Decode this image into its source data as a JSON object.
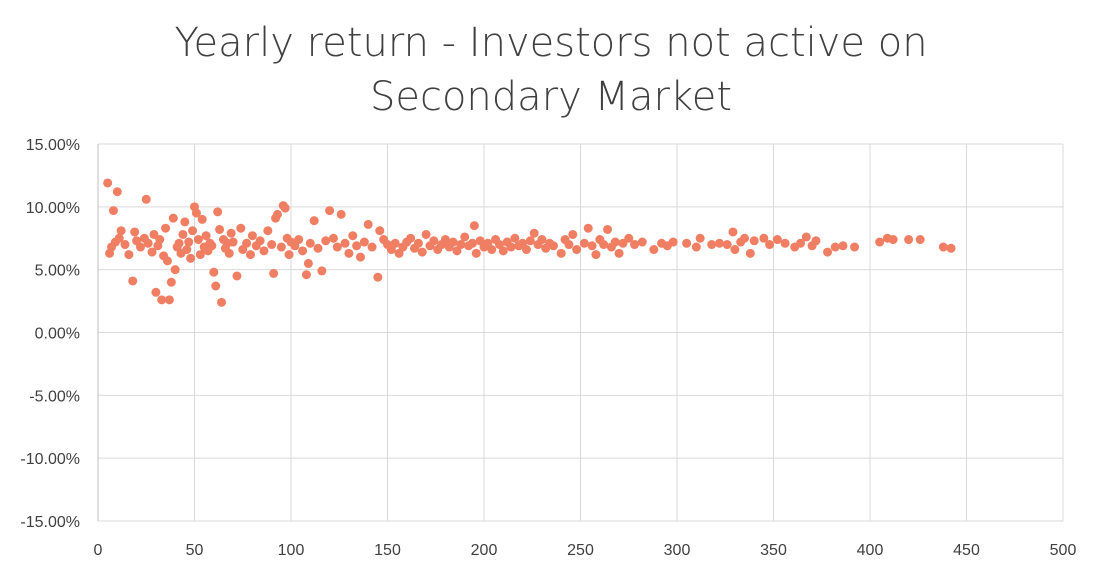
{
  "chart_data": {
    "type": "scatter",
    "title_line1": "Yearly return - Investors not active on",
    "title_line2": "Secondary Market",
    "xlabel": "",
    "ylabel": "",
    "xlim": [
      0,
      500
    ],
    "ylim": [
      -0.15,
      0.15
    ],
    "x_ticks": [
      0,
      50,
      100,
      150,
      200,
      250,
      300,
      350,
      400,
      450,
      500
    ],
    "x_tick_labels": [
      "0",
      "50",
      "100",
      "150",
      "200",
      "250",
      "300",
      "350",
      "400",
      "450",
      "500"
    ],
    "y_ticks": [
      0.15,
      0.1,
      0.05,
      0.0,
      -0.05,
      -0.1,
      -0.15
    ],
    "y_tick_labels": [
      "15.00%",
      "10.00%",
      "5.00%",
      "0.00%",
      "-5.00%",
      "-10.00%",
      "-15.00%"
    ],
    "grid": true,
    "legend": "none",
    "marker_color": "#F07E62",
    "points": [
      [
        5,
        0.119
      ],
      [
        10,
        0.112
      ],
      [
        8,
        0.097
      ],
      [
        25,
        0.106
      ],
      [
        18,
        0.041
      ],
      [
        30,
        0.032
      ],
      [
        33,
        0.026
      ],
      [
        37,
        0.026
      ],
      [
        40,
        0.05
      ],
      [
        38,
        0.04
      ],
      [
        6,
        0.063
      ],
      [
        7,
        0.068
      ],
      [
        9,
        0.072
      ],
      [
        11,
        0.075
      ],
      [
        12,
        0.081
      ],
      [
        14,
        0.07
      ],
      [
        16,
        0.062
      ],
      [
        19,
        0.08
      ],
      [
        20,
        0.073
      ],
      [
        22,
        0.068
      ],
      [
        24,
        0.075
      ],
      [
        26,
        0.071
      ],
      [
        28,
        0.064
      ],
      [
        29,
        0.078
      ],
      [
        31,
        0.069
      ],
      [
        32,
        0.074
      ],
      [
        34,
        0.061
      ],
      [
        35,
        0.083
      ],
      [
        36,
        0.057
      ],
      [
        39,
        0.091
      ],
      [
        41,
        0.068
      ],
      [
        42,
        0.071
      ],
      [
        43,
        0.063
      ],
      [
        44,
        0.078
      ],
      [
        45,
        0.088
      ],
      [
        46,
        0.066
      ],
      [
        47,
        0.072
      ],
      [
        48,
        0.059
      ],
      [
        49,
        0.081
      ],
      [
        50,
        0.1
      ],
      [
        51,
        0.095
      ],
      [
        52,
        0.074
      ],
      [
        53,
        0.062
      ],
      [
        54,
        0.09
      ],
      [
        55,
        0.068
      ],
      [
        56,
        0.077
      ],
      [
        57,
        0.065
      ],
      [
        58,
        0.071
      ],
      [
        59,
        0.069
      ],
      [
        60,
        0.048
      ],
      [
        61,
        0.037
      ],
      [
        62,
        0.096
      ],
      [
        63,
        0.082
      ],
      [
        64,
        0.024
      ],
      [
        65,
        0.074
      ],
      [
        66,
        0.067
      ],
      [
        67,
        0.071
      ],
      [
        68,
        0.063
      ],
      [
        69,
        0.079
      ],
      [
        70,
        0.072
      ],
      [
        72,
        0.045
      ],
      [
        74,
        0.083
      ],
      [
        75,
        0.066
      ],
      [
        77,
        0.071
      ],
      [
        79,
        0.062
      ],
      [
        80,
        0.077
      ],
      [
        82,
        0.069
      ],
      [
        84,
        0.073
      ],
      [
        86,
        0.065
      ],
      [
        88,
        0.081
      ],
      [
        90,
        0.07
      ],
      [
        91,
        0.047
      ],
      [
        92,
        0.091
      ],
      [
        93,
        0.094
      ],
      [
        95,
        0.068
      ],
      [
        96,
        0.101
      ],
      [
        97,
        0.099
      ],
      [
        98,
        0.075
      ],
      [
        99,
        0.062
      ],
      [
        100,
        0.072
      ],
      [
        102,
        0.069
      ],
      [
        104,
        0.074
      ],
      [
        106,
        0.065
      ],
      [
        108,
        0.046
      ],
      [
        109,
        0.055
      ],
      [
        110,
        0.071
      ],
      [
        112,
        0.089
      ],
      [
        114,
        0.067
      ],
      [
        116,
        0.049
      ],
      [
        118,
        0.073
      ],
      [
        120,
        0.097
      ],
      [
        122,
        0.075
      ],
      [
        124,
        0.068
      ],
      [
        126,
        0.094
      ],
      [
        128,
        0.071
      ],
      [
        130,
        0.063
      ],
      [
        132,
        0.077
      ],
      [
        134,
        0.069
      ],
      [
        136,
        0.06
      ],
      [
        138,
        0.072
      ],
      [
        140,
        0.086
      ],
      [
        142,
        0.068
      ],
      [
        145,
        0.044
      ],
      [
        146,
        0.081
      ],
      [
        148,
        0.074
      ],
      [
        150,
        0.07
      ],
      [
        152,
        0.066
      ],
      [
        154,
        0.071
      ],
      [
        156,
        0.063
      ],
      [
        158,
        0.068
      ],
      [
        160,
        0.072
      ],
      [
        162,
        0.075
      ],
      [
        164,
        0.067
      ],
      [
        166,
        0.071
      ],
      [
        168,
        0.064
      ],
      [
        170,
        0.078
      ],
      [
        172,
        0.069
      ],
      [
        174,
        0.073
      ],
      [
        176,
        0.066
      ],
      [
        178,
        0.07
      ],
      [
        180,
        0.074
      ],
      [
        182,
        0.068
      ],
      [
        184,
        0.072
      ],
      [
        186,
        0.065
      ],
      [
        188,
        0.07
      ],
      [
        190,
        0.076
      ],
      [
        192,
        0.069
      ],
      [
        194,
        0.071
      ],
      [
        195,
        0.085
      ],
      [
        196,
        0.063
      ],
      [
        198,
        0.073
      ],
      [
        200,
        0.068
      ],
      [
        202,
        0.071
      ],
      [
        204,
        0.066
      ],
      [
        206,
        0.074
      ],
      [
        208,
        0.07
      ],
      [
        210,
        0.065
      ],
      [
        212,
        0.072
      ],
      [
        214,
        0.068
      ],
      [
        216,
        0.075
      ],
      [
        218,
        0.069
      ],
      [
        220,
        0.071
      ],
      [
        222,
        0.066
      ],
      [
        224,
        0.073
      ],
      [
        226,
        0.079
      ],
      [
        228,
        0.07
      ],
      [
        230,
        0.074
      ],
      [
        232,
        0.067
      ],
      [
        234,
        0.071
      ],
      [
        236,
        0.069
      ],
      [
        240,
        0.063
      ],
      [
        242,
        0.074
      ],
      [
        244,
        0.07
      ],
      [
        246,
        0.078
      ],
      [
        248,
        0.066
      ],
      [
        252,
        0.071
      ],
      [
        254,
        0.083
      ],
      [
        256,
        0.069
      ],
      [
        258,
        0.062
      ],
      [
        260,
        0.074
      ],
      [
        262,
        0.07
      ],
      [
        264,
        0.082
      ],
      [
        266,
        0.068
      ],
      [
        268,
        0.072
      ],
      [
        270,
        0.063
      ],
      [
        272,
        0.071
      ],
      [
        275,
        0.075
      ],
      [
        278,
        0.07
      ],
      [
        282,
        0.072
      ],
      [
        288,
        0.066
      ],
      [
        292,
        0.071
      ],
      [
        295,
        0.069
      ],
      [
        298,
        0.072
      ],
      [
        305,
        0.071
      ],
      [
        310,
        0.068
      ],
      [
        312,
        0.075
      ],
      [
        318,
        0.07
      ],
      [
        322,
        0.071
      ],
      [
        326,
        0.07
      ],
      [
        329,
        0.08
      ],
      [
        330,
        0.066
      ],
      [
        333,
        0.072
      ],
      [
        335,
        0.075
      ],
      [
        338,
        0.063
      ],
      [
        340,
        0.073
      ],
      [
        345,
        0.075
      ],
      [
        348,
        0.07
      ],
      [
        352,
        0.074
      ],
      [
        356,
        0.071
      ],
      [
        361,
        0.068
      ],
      [
        364,
        0.071
      ],
      [
        367,
        0.076
      ],
      [
        370,
        0.069
      ],
      [
        372,
        0.073
      ],
      [
        378,
        0.064
      ],
      [
        382,
        0.068
      ],
      [
        386,
        0.069
      ],
      [
        392,
        0.068
      ],
      [
        405,
        0.072
      ],
      [
        409,
        0.075
      ],
      [
        412,
        0.074
      ],
      [
        420,
        0.074
      ],
      [
        426,
        0.074
      ],
      [
        438,
        0.068
      ],
      [
        442,
        0.067
      ]
    ]
  }
}
